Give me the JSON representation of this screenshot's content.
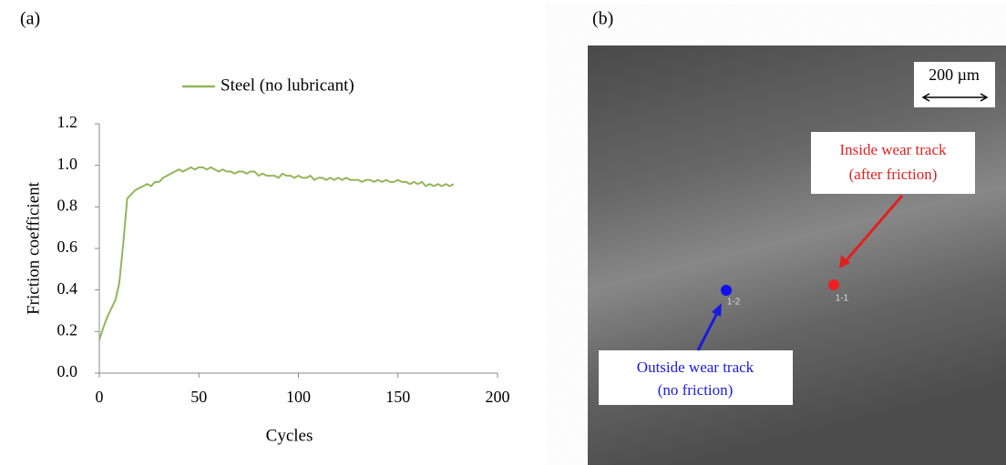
{
  "panels": [
    "(a)",
    "(b)"
  ],
  "chart_data": {
    "type": "line",
    "xlabel": "Cycles",
    "ylabel": "Friction coefficient",
    "x": [
      0,
      2,
      4,
      6,
      8,
      10,
      12,
      14,
      16,
      18,
      20,
      22,
      24,
      26,
      28,
      30,
      32,
      34,
      36,
      38,
      40,
      42,
      44,
      46,
      48,
      50,
      52,
      54,
      56,
      58,
      60,
      62,
      64,
      66,
      68,
      70,
      72,
      74,
      76,
      78,
      80,
      82,
      84,
      86,
      88,
      90,
      92,
      94,
      96,
      98,
      100,
      102,
      104,
      106,
      108,
      110,
      112,
      114,
      116,
      118,
      120,
      122,
      124,
      126,
      128,
      130,
      132,
      134,
      136,
      138,
      140,
      142,
      144,
      146,
      148,
      150,
      152,
      154,
      156,
      158,
      160,
      162,
      164,
      166,
      168,
      170,
      172,
      174,
      176,
      178
    ],
    "series": [
      {
        "name": "Steel (no lubricant)",
        "color": "#92b55a",
        "values": [
          0.16,
          0.22,
          0.27,
          0.31,
          0.35,
          0.43,
          0.62,
          0.84,
          0.86,
          0.88,
          0.89,
          0.9,
          0.91,
          0.9,
          0.92,
          0.92,
          0.94,
          0.95,
          0.96,
          0.97,
          0.98,
          0.97,
          0.98,
          0.99,
          0.98,
          0.99,
          0.99,
          0.98,
          0.99,
          0.98,
          0.97,
          0.98,
          0.97,
          0.97,
          0.96,
          0.97,
          0.97,
          0.96,
          0.97,
          0.97,
          0.95,
          0.96,
          0.95,
          0.95,
          0.95,
          0.94,
          0.96,
          0.95,
          0.95,
          0.94,
          0.95,
          0.94,
          0.94,
          0.95,
          0.93,
          0.94,
          0.94,
          0.93,
          0.94,
          0.93,
          0.94,
          0.93,
          0.94,
          0.93,
          0.93,
          0.93,
          0.92,
          0.93,
          0.93,
          0.92,
          0.93,
          0.92,
          0.93,
          0.92,
          0.92,
          0.93,
          0.92,
          0.92,
          0.91,
          0.92,
          0.91,
          0.92,
          0.9,
          0.91,
          0.9,
          0.91,
          0.9,
          0.91,
          0.9,
          0.91
        ]
      }
    ],
    "xlim": [
      0,
      200
    ],
    "xticks": [
      0,
      50,
      100,
      150,
      200
    ],
    "ylim": [
      0,
      1.2
    ],
    "yticks": [
      {
        "value": 0,
        "label": "0.0"
      },
      0.2,
      0.4,
      0.6,
      0.8,
      {
        "value": 1,
        "label": "1.0"
      },
      1.2
    ],
    "grid": false,
    "legend": "top"
  },
  "micrograph": {
    "scale_bar": "200 µm",
    "inside": {
      "lines": [
        "Inside wear track",
        "(after friction)"
      ],
      "point": "1-1"
    },
    "outside": {
      "lines": [
        "Outside wear track",
        "(no friction)"
      ],
      "point": "1-2"
    }
  }
}
